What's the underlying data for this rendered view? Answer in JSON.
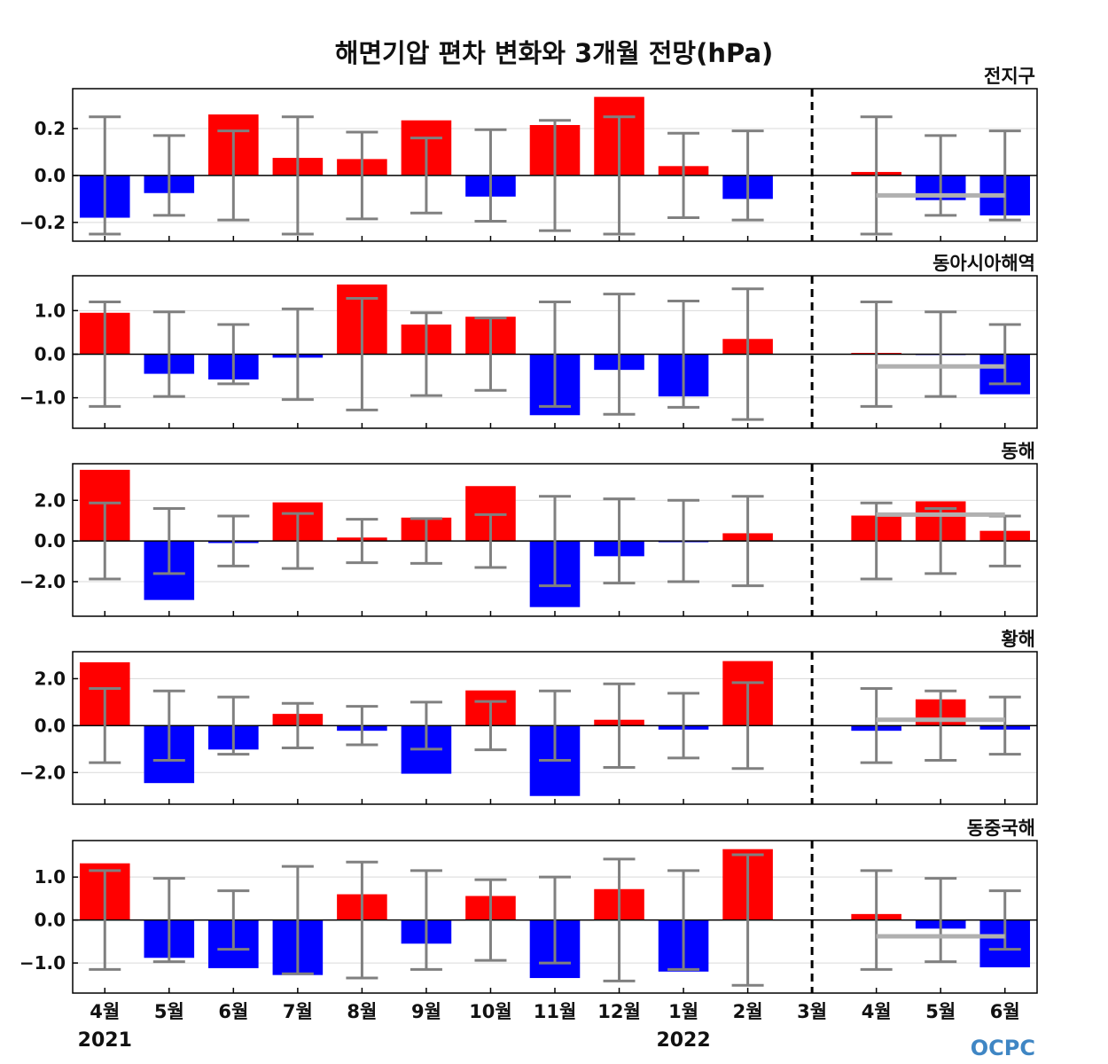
{
  "title": "해면기압 편차 변화와 3개월 전망(hPa)",
  "logo_text": "OCPC",
  "colors": {
    "positive": "#ff0000",
    "negative": "#0000ff",
    "errorbar": "#808080",
    "forecast_mean": "#b0b0b0",
    "divider": "#000000",
    "grid": "#d9d9d9"
  },
  "chart_data": [
    {
      "type": "bar",
      "region": "전지구",
      "categories": [
        "4월",
        "5월",
        "6월",
        "7월",
        "8월",
        "9월",
        "10월",
        "11월",
        "12월",
        "1월",
        "2월",
        "3월",
        "4월",
        "5월",
        "6월"
      ],
      "values": [
        -0.18,
        -0.075,
        0.26,
        0.075,
        0.07,
        0.235,
        -0.09,
        0.215,
        0.335,
        0.04,
        -0.1,
        0,
        0.015,
        -0.105,
        -0.17
      ],
      "errorbar_halfwidth": [
        0.25,
        0.17,
        0.19,
        0.25,
        0.185,
        0.16,
        0.195,
        0.235,
        0.25,
        0.18,
        0.19,
        0,
        0.25,
        0.17,
        0.19
      ],
      "forecast_mean": -0.085,
      "ylim": [
        -0.28,
        0.37
      ],
      "yticks": [
        0.2,
        0.0,
        -0.2
      ],
      "ytick_labels": [
        "0.2",
        "0.0",
        "−0.2"
      ]
    },
    {
      "type": "bar",
      "region": "동아시아해역",
      "categories": [
        "4월",
        "5월",
        "6월",
        "7월",
        "8월",
        "9월",
        "10월",
        "11월",
        "12월",
        "1월",
        "2월",
        "3월",
        "4월",
        "5월",
        "6월"
      ],
      "values": [
        0.95,
        -0.45,
        -0.58,
        -0.08,
        1.6,
        0.68,
        0.86,
        -1.4,
        -0.36,
        -0.97,
        0.35,
        0,
        0.03,
        -0.02,
        -0.92
      ],
      "errorbar_halfwidth": [
        1.2,
        0.97,
        0.68,
        1.04,
        1.28,
        0.95,
        0.83,
        1.2,
        1.38,
        1.22,
        1.5,
        0,
        1.2,
        0.97,
        0.68
      ],
      "forecast_mean": -0.28,
      "ylim": [
        -1.7,
        1.8
      ],
      "yticks": [
        1.0,
        0.0,
        -1.0
      ],
      "ytick_labels": [
        "1.0",
        "0.0",
        "−1.0"
      ]
    },
    {
      "type": "bar",
      "region": "동해",
      "categories": [
        "4월",
        "5월",
        "6월",
        "7월",
        "8월",
        "9월",
        "10월",
        "11월",
        "12월",
        "1월",
        "2월",
        "3월",
        "4월",
        "5월",
        "6월"
      ],
      "values": [
        3.5,
        -2.9,
        -0.1,
        1.9,
        0.17,
        1.15,
        2.7,
        -3.25,
        -0.75,
        -0.06,
        0.38,
        0,
        1.25,
        1.95,
        0.5
      ],
      "errorbar_halfwidth": [
        1.87,
        1.6,
        1.23,
        1.35,
        1.07,
        1.1,
        1.3,
        2.2,
        2.07,
        2.0,
        2.2,
        0,
        1.87,
        1.6,
        1.23
      ],
      "forecast_mean": 1.3,
      "ylim": [
        -3.7,
        3.8
      ],
      "yticks": [
        2.0,
        0.0,
        -2.0
      ],
      "ytick_labels": [
        "2.0",
        "0.0",
        "−2.0"
      ]
    },
    {
      "type": "bar",
      "region": "황해",
      "categories": [
        "4월",
        "5월",
        "6월",
        "7월",
        "8월",
        "9월",
        "10월",
        "11월",
        "12월",
        "1월",
        "2월",
        "3월",
        "4월",
        "5월",
        "6월"
      ],
      "values": [
        2.7,
        -2.45,
        -1.02,
        0.5,
        -0.22,
        -2.05,
        1.5,
        -3.0,
        0.25,
        -0.17,
        2.75,
        0,
        -0.22,
        1.12,
        -0.17
      ],
      "errorbar_halfwidth": [
        1.58,
        1.48,
        1.22,
        0.95,
        0.82,
        1.0,
        1.03,
        1.48,
        1.78,
        1.38,
        1.83,
        0,
        1.58,
        1.48,
        1.22
      ],
      "forecast_mean": 0.25,
      "ylim": [
        -3.35,
        3.15
      ],
      "yticks": [
        2.0,
        0.0,
        -2.0
      ],
      "ytick_labels": [
        "2.0",
        "0.0",
        "−2.0"
      ]
    },
    {
      "type": "bar",
      "region": "동중국해",
      "categories": [
        "4월",
        "5월",
        "6월",
        "7월",
        "8월",
        "9월",
        "10월",
        "11월",
        "12월",
        "1월",
        "2월",
        "3월",
        "4월",
        "5월",
        "6월"
      ],
      "values": [
        1.32,
        -0.88,
        -1.12,
        -1.28,
        0.6,
        -0.55,
        0.56,
        -1.35,
        0.72,
        -1.2,
        1.65,
        0,
        0.14,
        -0.2,
        -1.1
      ],
      "errorbar_halfwidth": [
        1.15,
        0.97,
        0.68,
        1.25,
        1.35,
        1.15,
        0.94,
        1.0,
        1.42,
        1.15,
        1.52,
        0,
        1.15,
        0.97,
        0.68
      ],
      "forecast_mean": -0.38,
      "ylim": [
        -1.7,
        1.85
      ],
      "yticks": [
        1.0,
        0.0,
        -1.0
      ],
      "ytick_labels": [
        "1.0",
        "0.0",
        "−1.0"
      ]
    }
  ],
  "x_labels": [
    "4월",
    "5월",
    "6월",
    "7월",
    "8월",
    "9월",
    "10월",
    "11월",
    "12월",
    "1월",
    "2월",
    "3월",
    "4월",
    "5월",
    "6월"
  ],
  "year_labels": [
    {
      "text": "2021",
      "index": 0
    },
    {
      "text": "2022",
      "index": 9
    }
  ],
  "forecast_divider_index": 11,
  "forecast_indices": [
    12,
    13,
    14
  ]
}
